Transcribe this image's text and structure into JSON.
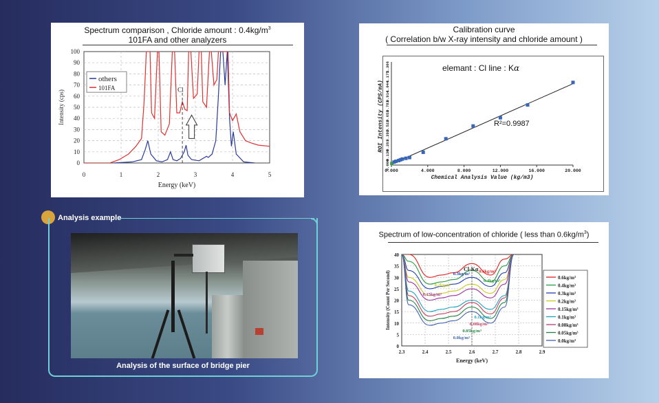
{
  "spectrum": {
    "title_line1": "Spectrum comparison , Chloride amount : 0.4kg/m",
    "title_sup": "3",
    "title_line2": "101FA and other analyzers",
    "chart_data": {
      "type": "line",
      "xlabel": "Energy (keV)",
      "ylabel": "Intensity (cps)",
      "xlim": [
        0,
        5
      ],
      "ylim": [
        0,
        100
      ],
      "x_ticks": [
        "0",
        "1",
        "2",
        "3",
        "4",
        "5"
      ],
      "y_ticks": [
        "0",
        "10",
        "20",
        "30",
        "40",
        "50",
        "60",
        "70",
        "80",
        "90",
        "100"
      ],
      "grid": true,
      "legend": "top-left",
      "annotation": "Cl",
      "series": [
        {
          "name": "others",
          "color": "#2a3a9a",
          "points": [
            [
              0.8,
              0
            ],
            [
              1.3,
              1
            ],
            [
              1.55,
              3
            ],
            [
              1.65,
              12
            ],
            [
              1.72,
              20
            ],
            [
              1.8,
              8
            ],
            [
              1.95,
              2
            ],
            [
              2.1,
              1
            ],
            [
              2.25,
              3
            ],
            [
              2.33,
              10
            ],
            [
              2.4,
              3
            ],
            [
              2.5,
              2
            ],
            [
              2.6,
              4
            ],
            [
              2.7,
              10
            ],
            [
              2.75,
              16
            ],
            [
              2.8,
              7
            ],
            [
              2.9,
              3
            ],
            [
              3.1,
              2
            ],
            [
              3.2,
              4
            ],
            [
              3.3,
              6
            ],
            [
              3.35,
              5
            ],
            [
              3.45,
              8
            ],
            [
              3.55,
              20
            ],
            [
              3.62,
              60
            ],
            [
              3.68,
              100
            ],
            [
              3.74,
              100
            ],
            [
              3.8,
              70
            ],
            [
              3.86,
              100
            ],
            [
              3.92,
              40
            ],
            [
              3.97,
              15
            ],
            [
              4.02,
              28
            ],
            [
              4.1,
              8
            ],
            [
              4.3,
              1
            ],
            [
              4.6,
              0
            ]
          ]
        },
        {
          "name": "101FA",
          "color": "#e03030",
          "points": [
            [
              0,
              0
            ],
            [
              0.7,
              0
            ],
            [
              0.95,
              3
            ],
            [
              1.2,
              8
            ],
            [
              1.4,
              15
            ],
            [
              1.55,
              22
            ],
            [
              1.62,
              55
            ],
            [
              1.68,
              100
            ],
            [
              1.78,
              100
            ],
            [
              1.82,
              45
            ],
            [
              1.9,
              40
            ],
            [
              1.98,
              100
            ],
            [
              2.02,
              100
            ],
            [
              2.08,
              28
            ],
            [
              2.18,
              25
            ],
            [
              2.3,
              35
            ],
            [
              2.38,
              100
            ],
            [
              2.44,
              100
            ],
            [
              2.5,
              45
            ],
            [
              2.58,
              45
            ],
            [
              2.65,
              55
            ],
            [
              2.72,
              48
            ],
            [
              2.78,
              47
            ],
            [
              2.82,
              100
            ],
            [
              2.88,
              100
            ],
            [
              2.95,
              58
            ],
            [
              3.05,
              62
            ],
            [
              3.1,
              100
            ],
            [
              3.16,
              100
            ],
            [
              3.2,
              55
            ],
            [
              3.3,
              50
            ],
            [
              3.38,
              100
            ],
            [
              3.43,
              100
            ],
            [
              3.5,
              70
            ],
            [
              3.58,
              75
            ],
            [
              3.62,
              100
            ],
            [
              3.88,
              100
            ],
            [
              3.92,
              45
            ],
            [
              4.0,
              38
            ],
            [
              4.1,
              44
            ],
            [
              4.2,
              28
            ],
            [
              4.35,
              20
            ],
            [
              4.5,
              18
            ],
            [
              4.7,
              16
            ],
            [
              5.0,
              15
            ]
          ]
        }
      ]
    }
  },
  "calibration": {
    "title_line1": "Calibration curve",
    "title_line2": "( Correlation b/w X-ray intensity and chloride amount )",
    "annotation": "elemant : Cl  line : K",
    "annotation_alpha": "α",
    "r2_text": "R²=0.9987",
    "chart_data": {
      "type": "scatter",
      "xlabel": "Chemical Analysis Value (kg/m3)",
      "ylabel": "ROI Intensity (CPS/mA)",
      "xlim": [
        0,
        20
      ],
      "ylim": [
        0,
        1.3
      ],
      "x_ticks": [
        "0.000",
        "4.000",
        "8.000",
        "12.000",
        "16.000",
        "20.000"
      ],
      "y_ticks": [
        "0.000",
        "0.130",
        "0.261",
        "0.392",
        "0.522",
        "0.653",
        "0.783",
        "0.914",
        "1.044",
        "1.175",
        "1.306"
      ],
      "trendline": true,
      "x": [
        0.05,
        0.3,
        0.5,
        0.8,
        1.0,
        1.2,
        1.6,
        2.0,
        3.5,
        6.0,
        9.0,
        12.0,
        15.0,
        20.0
      ],
      "y": [
        0.02,
        0.04,
        0.05,
        0.06,
        0.07,
        0.08,
        0.09,
        0.1,
        0.17,
        0.35,
        0.52,
        0.63,
        0.8,
        1.1
      ],
      "point_color": "#3a66b8"
    }
  },
  "analysis": {
    "label": "Analysis example",
    "caption": "Analysis of the surface of bridge pier"
  },
  "lowconc": {
    "title_main": "Spectrum of low-concentration of chloride ( less than 0.6kg/m",
    "title_sup": "3",
    "title_end": ")",
    "peak_label": "Cl-Kα",
    "chart_data": {
      "type": "line",
      "xlabel": "Energy (keV)",
      "ylabel": "Intensity (Count Per Second)",
      "xlim": [
        2.3,
        2.9
      ],
      "ylim": [
        0,
        40
      ],
      "x_ticks": [
        "2.3",
        "2.4",
        "2.5",
        "2.6",
        "2.7",
        "2.8",
        "2.9"
      ],
      "y_ticks": [
        "0",
        "5",
        "10",
        "15",
        "20",
        "25",
        "30",
        "35",
        "40"
      ],
      "grid": true,
      "legend": "right",
      "series": [
        {
          "name": "0.6kg/m³",
          "color": "#e02020",
          "levels": [
            40,
            30,
            30,
            36,
            40
          ]
        },
        {
          "name": "0.4kg/m³",
          "color": "#2a9a40",
          "levels": [
            37,
            27,
            27,
            33,
            40
          ]
        },
        {
          "name": "0.3kg/m³",
          "color": "#2040b0",
          "levels": [
            33,
            25,
            25,
            30,
            40
          ]
        },
        {
          "name": "0.2kg/m³",
          "color": "#c8c820",
          "levels": [
            30,
            22,
            22,
            27,
            40
          ]
        },
        {
          "name": "0.15kg/m³",
          "color": "#a030a0",
          "levels": [
            28,
            20,
            20,
            25,
            40
          ]
        },
        {
          "name": "0.1kg/m³",
          "color": "#20a0c0",
          "levels": [
            24,
            15,
            15,
            20,
            40
          ]
        },
        {
          "name": "0.08kg/m³",
          "color": "#c04060",
          "levels": [
            22,
            13,
            13,
            19,
            40
          ]
        },
        {
          "name": "0.05kg/m³",
          "color": "#208040",
          "levels": [
            20,
            11,
            11,
            17,
            40
          ]
        },
        {
          "name": "0.0kg/m³",
          "color": "#4060b0",
          "levels": [
            18,
            9,
            9,
            15,
            40
          ]
        }
      ],
      "labels_on_chart": [
        "0.3kg/m³",
        "0.2kg/m³",
        "0.15kg/m³",
        "0.6kg/m³",
        "0.4kg/m³",
        "0.1kg/m³",
        "0.08kg/m³",
        "0.05kg/m³",
        "0.0kg/m³"
      ]
    }
  }
}
